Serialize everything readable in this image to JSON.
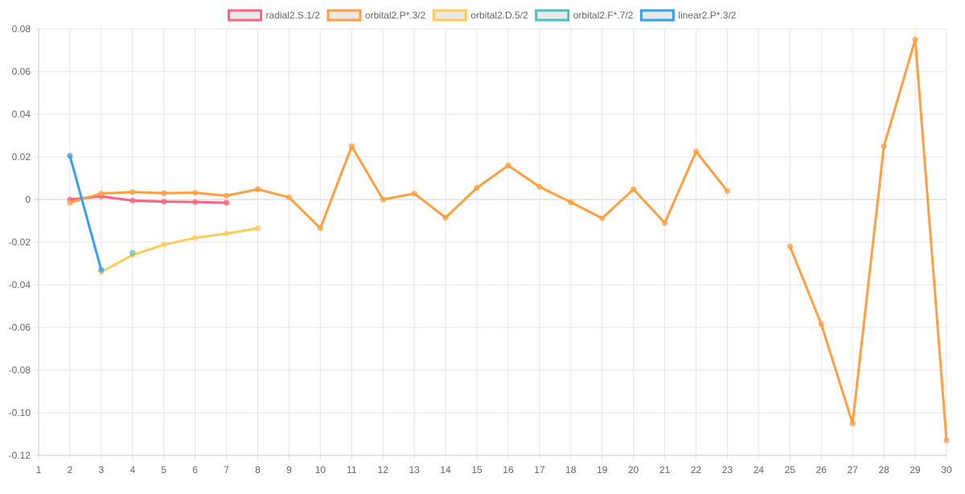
{
  "chart_data": {
    "type": "line",
    "title": "",
    "xlabel": "",
    "ylabel": "",
    "x": [
      1,
      2,
      3,
      4,
      5,
      6,
      7,
      8,
      9,
      10,
      11,
      12,
      13,
      14,
      15,
      16,
      17,
      18,
      19,
      20,
      21,
      22,
      23,
      24,
      25,
      26,
      27,
      28,
      29,
      30
    ],
    "xlim": [
      1,
      30
    ],
    "ylim": [
      -0.12,
      0.08
    ],
    "yticks": [
      0.08,
      0.06,
      0.04,
      0.02,
      0,
      -0.02,
      -0.04,
      -0.06,
      -0.08,
      -0.1,
      -0.12
    ],
    "ytick_labels": [
      "0.08",
      "0.06",
      "0.04",
      "0.02",
      "0",
      "-0.02",
      "-0.04",
      "-0.06",
      "-0.08",
      "-0.10",
      "-0.12"
    ],
    "grid": true,
    "legend_position": "top",
    "series": [
      {
        "name": "radial2.S.1/2",
        "color": "#ff6384",
        "points": [
          [
            2,
            0.0
          ],
          [
            3,
            0.0015
          ],
          [
            4,
            -0.0005
          ],
          [
            5,
            -0.001
          ],
          [
            6,
            -0.0012
          ],
          [
            7,
            -0.0015
          ]
        ]
      },
      {
        "name": "orbital2.P*.3/2",
        "color": "#ff9f40",
        "points": [
          [
            2,
            -0.0015
          ],
          [
            3,
            0.0028
          ],
          [
            4,
            0.0035
          ],
          [
            5,
            0.003
          ],
          [
            6,
            0.0032
          ],
          [
            7,
            0.0018
          ],
          [
            8,
            0.0048
          ],
          [
            9,
            0.001
          ],
          [
            10,
            -0.0135
          ],
          [
            11,
            0.025
          ],
          [
            12,
            0.0
          ],
          [
            13,
            0.0028
          ],
          [
            14,
            -0.0085
          ],
          [
            15,
            0.0055
          ],
          [
            16,
            0.016
          ],
          [
            17,
            0.006
          ],
          [
            18,
            -0.0013
          ],
          [
            19,
            -0.0088
          ],
          [
            20,
            0.0048
          ],
          [
            21,
            -0.011
          ],
          [
            22,
            0.0225
          ],
          [
            23,
            0.004
          ],
          [
            25,
            -0.022
          ],
          [
            26,
            -0.0585
          ],
          [
            27,
            -0.105
          ],
          [
            28,
            0.025
          ],
          [
            29,
            0.075
          ],
          [
            30,
            -0.113
          ]
        ]
      },
      {
        "name": "orbital2.D.5/2",
        "color": "#ffcd56",
        "points": [
          [
            3,
            -0.034
          ],
          [
            4,
            -0.026
          ],
          [
            5,
            -0.0212
          ],
          [
            6,
            -0.018
          ],
          [
            7,
            -0.016
          ],
          [
            8,
            -0.0135
          ]
        ]
      },
      {
        "name": "orbital2.F*.7/2",
        "color": "#4bc0c0",
        "points": [
          [
            4,
            -0.025
          ]
        ]
      },
      {
        "name": "linear2.P*.3/2",
        "color": "#36a2eb",
        "points": [
          [
            2,
            0.0205
          ],
          [
            3,
            -0.033
          ]
        ]
      }
    ]
  }
}
